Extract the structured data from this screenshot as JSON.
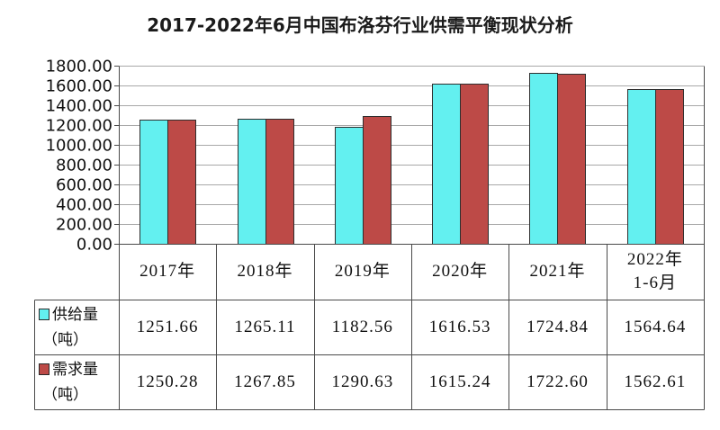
{
  "chart_data": {
    "type": "bar",
    "title": "2017-2022年6月中国布洛芬行业供需平衡现状分析",
    "categories": [
      "2017年",
      "2018年",
      "2019年",
      "2020年",
      "2021年",
      "2022年\n1-6月"
    ],
    "series": [
      {
        "name": "供给量",
        "unit": "（吨）",
        "color": "#63F0F0",
        "values": [
          1251.66,
          1265.11,
          1182.56,
          1616.53,
          1724.84,
          1564.64
        ],
        "value_labels": [
          "1251.66",
          "1265.11",
          "1182.56",
          "1616.53",
          "1724.84",
          "1564.64"
        ]
      },
      {
        "name": "需求量",
        "unit": "（吨）",
        "color": "#BD4A47",
        "values": [
          1250.28,
          1267.85,
          1290.63,
          1615.24,
          1722.6,
          1562.61
        ],
        "value_labels": [
          "1250.28",
          "1267.85",
          "1290.63",
          "1615.24",
          "1722.60",
          "1562.61"
        ]
      }
    ],
    "ylim": [
      0,
      1800
    ],
    "yticks": [
      0,
      200,
      400,
      600,
      800,
      1000,
      1200,
      1400,
      1600,
      1800
    ],
    "ytick_labels": [
      "0.00",
      "200.00",
      "400.00",
      "600.00",
      "800.00",
      "1000.00",
      "1200.00",
      "1400.00",
      "1600.00",
      "1800.00"
    ],
    "grid": true,
    "legend": "data-table-left",
    "data_table": true
  }
}
